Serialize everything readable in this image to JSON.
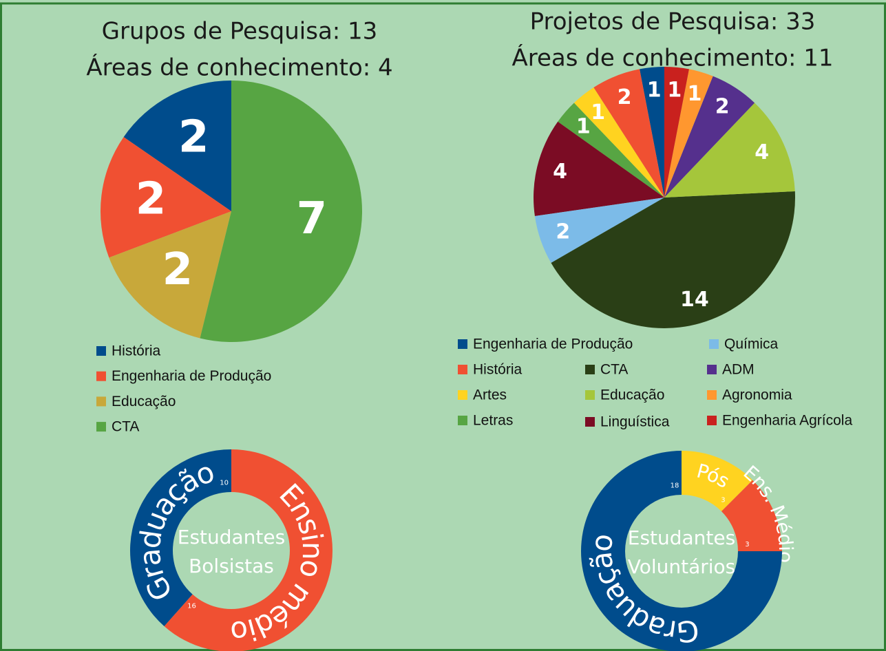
{
  "chart_data": [
    {
      "type": "pie",
      "title": "Grupos de Pesquisa: 13",
      "subtitle": "Áreas de conhecimento: 4",
      "direction": "counterclockwise",
      "categories": [
        "História",
        "Engenharia de Produção",
        "Educação",
        "CTA"
      ],
      "values": [
        2,
        2,
        2,
        7
      ],
      "colors": [
        "#004c8c",
        "#f05032",
        "#c8a83a",
        "#57a543"
      ]
    },
    {
      "type": "pie",
      "title": "Projetos de Pesquisa: 33",
      "subtitle": "Áreas de conhecimento: 11",
      "direction": "counterclockwise",
      "categories": [
        "Engenharia de Produção",
        "História",
        "Artes",
        "Letras",
        "Linguística",
        "Química",
        "CTA",
        "Educação",
        "ADM",
        "Agronomia",
        "Engenharia Agrícola"
      ],
      "values": [
        1,
        2,
        1,
        1,
        4,
        2,
        14,
        4,
        2,
        1,
        1
      ],
      "colors": [
        "#004c8c",
        "#f05032",
        "#ffd320",
        "#57a543",
        "#7b0c24",
        "#7cbbe8",
        "#2a3f16",
        "#a5c63b",
        "#55308d",
        "#ff972f",
        "#c9211e"
      ]
    },
    {
      "type": "donut",
      "center_text": [
        "Estudantes",
        "Bolsistas"
      ],
      "direction": "clockwise",
      "categories": [
        "Ensino médio",
        "Graduação"
      ],
      "values": [
        16,
        10
      ],
      "colors": [
        "#f05032",
        "#004c8c"
      ]
    },
    {
      "type": "donut",
      "center_text": [
        "Estudantes",
        "Voluntários"
      ],
      "direction": "clockwise",
      "categories": [
        "Pós",
        "Ens. Médio",
        "Graduação"
      ],
      "values": [
        3,
        3,
        18
      ],
      "colors": [
        "#ffd320",
        "#f05032",
        "#004c8c"
      ]
    }
  ]
}
